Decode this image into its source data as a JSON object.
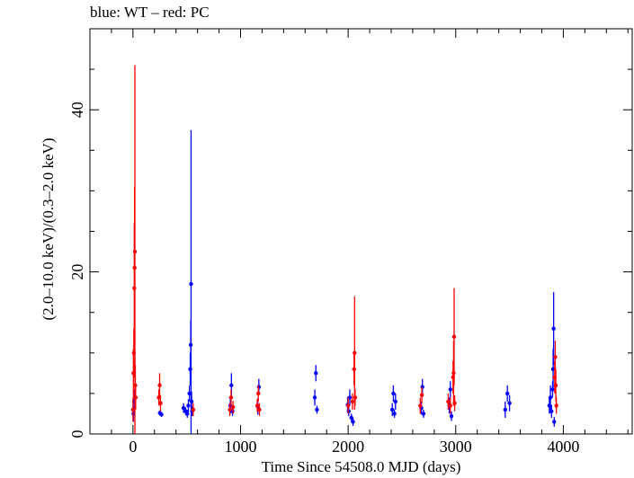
{
  "chart_data": {
    "type": "scatter",
    "title": "blue: WT – red: PC",
    "xlabel": "Time Since 54508.0 MJD (days)",
    "ylabel": "(2.0–10.0 keV)/(0.3–2.0 keV)",
    "xlim": [
      -400,
      4640
    ],
    "ylim": [
      0,
      50
    ],
    "x_ticks": [
      0,
      1000,
      2000,
      3000,
      4000
    ],
    "y_ticks": [
      0,
      20,
      40
    ],
    "grid": false,
    "colors": {
      "WT": "#0000ff",
      "PC": "#ff0000"
    },
    "series": [
      {
        "name": "WT",
        "points": [
          [
            5,
            2.5,
            1.0
          ],
          [
            12,
            4.0,
            1.5
          ],
          [
            250,
            2.6,
            0.3
          ],
          [
            265,
            2.4,
            0.3
          ],
          [
            470,
            3.2,
            0.6
          ],
          [
            490,
            2.8,
            0.5
          ],
          [
            505,
            2.5,
            0.5
          ],
          [
            515,
            3.5,
            0.8
          ],
          [
            525,
            5.0,
            1.0
          ],
          [
            532,
            8.0,
            2.0
          ],
          [
            537,
            11.0,
            3.0
          ],
          [
            540,
            18.5,
            19.0
          ],
          [
            545,
            4.0,
            1.2
          ],
          [
            550,
            2.8,
            0.6
          ],
          [
            905,
            3.5,
            1.0
          ],
          [
            915,
            6.0,
            1.5
          ],
          [
            925,
            2.8,
            0.6
          ],
          [
            1160,
            3.4,
            1.0
          ],
          [
            1170,
            5.8,
            1.0
          ],
          [
            1690,
            4.5,
            1.0
          ],
          [
            1700,
            7.5,
            1.0
          ],
          [
            1710,
            3.0,
            0.5
          ],
          [
            1995,
            3.6,
            1.0
          ],
          [
            2005,
            2.8,
            0.6
          ],
          [
            2015,
            4.5,
            1.0
          ],
          [
            2030,
            2.0,
            0.5
          ],
          [
            2045,
            1.5,
            0.5
          ],
          [
            2410,
            3.0,
            0.8
          ],
          [
            2420,
            5.0,
            1.0
          ],
          [
            2430,
            2.5,
            0.5
          ],
          [
            2440,
            4.0,
            1.0
          ],
          [
            2680,
            3.2,
            0.8
          ],
          [
            2690,
            5.8,
            1.0
          ],
          [
            2700,
            2.5,
            0.5
          ],
          [
            2940,
            3.5,
            1.0
          ],
          [
            2950,
            5.5,
            1.0
          ],
          [
            2960,
            2.2,
            0.6
          ],
          [
            3460,
            3.0,
            1.0
          ],
          [
            3480,
            5.0,
            1.0
          ],
          [
            3500,
            3.8,
            1.0
          ],
          [
            3870,
            3.5,
            1.0
          ],
          [
            3880,
            4.5,
            1.5
          ],
          [
            3890,
            2.8,
            0.8
          ],
          [
            3900,
            5.5,
            1.0
          ],
          [
            3905,
            8.0,
            2.5
          ],
          [
            3910,
            13.0,
            4.5
          ],
          [
            3915,
            1.5,
            0.6
          ]
        ]
      },
      {
        "name": "PC",
        "points": [
          [
            0,
            3.0,
            1.5
          ],
          [
            4,
            7.5,
            3.0
          ],
          [
            8,
            10.0,
            3.0
          ],
          [
            12,
            18.0,
            8.0
          ],
          [
            15,
            20.5,
            10.0
          ],
          [
            18,
            22.5,
            23.0
          ],
          [
            22,
            6.0,
            2.5
          ],
          [
            25,
            4.5,
            1.5
          ],
          [
            240,
            4.5,
            1.0
          ],
          [
            248,
            6.0,
            1.5
          ],
          [
            256,
            3.8,
            1.0
          ],
          [
            560,
            3.0,
            0.8
          ],
          [
            900,
            3.0,
            0.8
          ],
          [
            912,
            4.5,
            1.0
          ],
          [
            930,
            3.3,
            0.8
          ],
          [
            1155,
            3.5,
            0.8
          ],
          [
            1165,
            5.0,
            1.0
          ],
          [
            1175,
            3.0,
            0.8
          ],
          [
            2000,
            3.5,
            1.0
          ],
          [
            2040,
            4.0,
            1.0
          ],
          [
            2055,
            8.0,
            2.0
          ],
          [
            2060,
            10.0,
            7.0
          ],
          [
            2065,
            4.5,
            1.0
          ],
          [
            2670,
            3.5,
            1.0
          ],
          [
            2685,
            4.8,
            1.0
          ],
          [
            2930,
            4.0,
            1.0
          ],
          [
            2950,
            3.5,
            1.0
          ],
          [
            2975,
            7.0,
            2.0
          ],
          [
            2980,
            7.5,
            4.0
          ],
          [
            2985,
            12.0,
            6.0
          ],
          [
            2990,
            3.8,
            1.0
          ],
          [
            3920,
            7.0,
            2.0
          ],
          [
            3925,
            9.5,
            2.0
          ],
          [
            3930,
            6.0,
            2.0
          ],
          [
            3935,
            3.5,
            1.0
          ]
        ]
      }
    ]
  }
}
